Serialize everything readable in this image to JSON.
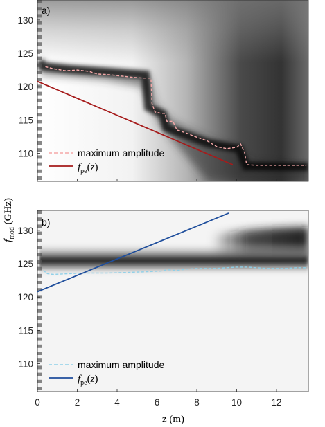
{
  "chart_data": [
    {
      "type": "heatmap",
      "panel_label": "a)",
      "xlim": [
        0,
        13.6
      ],
      "ylim": [
        105.8,
        133
      ],
      "xticks": [],
      "yticks": [
        110,
        115,
        120,
        125,
        130
      ],
      "grid": false,
      "legend_placement": "bottom-left",
      "series": [
        {
          "name": "maximum amplitude",
          "style": "dashed",
          "color": "#f5a8a8",
          "x": [
            0.4,
            0.8,
            1.4,
            2.0,
            2.6,
            3.0,
            3.6,
            4.2,
            4.8,
            5.3,
            5.7,
            5.75,
            5.9,
            6.2,
            6.4,
            6.5,
            6.8,
            7.0,
            7.5,
            8.0,
            8.5,
            9.0,
            9.5,
            10.0,
            10.2,
            10.4,
            10.5,
            11.0,
            11.5,
            12.0,
            12.5,
            13.0,
            13.5
          ],
          "y": [
            123.0,
            122.7,
            122.4,
            122.5,
            122.3,
            121.9,
            121.8,
            121.6,
            121.4,
            121.3,
            121.3,
            117.5,
            116.2,
            116.0,
            116.0,
            114.8,
            114.8,
            113.5,
            113.0,
            112.4,
            111.9,
            111.0,
            110.7,
            110.9,
            111.4,
            110.1,
            108.3,
            108.2,
            108.2,
            108.2,
            108.2,
            108.2,
            108.2
          ]
        },
        {
          "name": "f_pe(z)",
          "style": "solid",
          "color": "#a61b1b",
          "x": [
            0,
            9.8
          ],
          "y": [
            120.8,
            108.3
          ]
        }
      ]
    },
    {
      "type": "heatmap",
      "panel_label": "b)",
      "xlim": [
        0,
        13.6
      ],
      "ylim": [
        105.8,
        133
      ],
      "xticks": [
        0,
        2,
        4,
        6,
        8,
        10,
        12
      ],
      "yticks": [
        110,
        115,
        120,
        125,
        130
      ],
      "grid": false,
      "legend_placement": "bottom-left",
      "series": [
        {
          "name": "maximum amplitude",
          "style": "dashed",
          "color": "#8fd0e8",
          "x": [
            0.3,
            0.5,
            0.8,
            1.5,
            2.5,
            3.5,
            4.5,
            5.5,
            6.2,
            6.5,
            7.0,
            7.5,
            8.0,
            8.5,
            9.0,
            9.5,
            10.0,
            10.5,
            11.0,
            11.5,
            12.0,
            12.5,
            13.0,
            13.5
          ],
          "y": [
            124.0,
            123.5,
            123.4,
            123.5,
            123.6,
            123.6,
            123.7,
            123.8,
            123.9,
            124.1,
            124.0,
            124.2,
            124.3,
            124.3,
            124.3,
            124.4,
            124.5,
            124.5,
            124.4,
            124.3,
            124.3,
            124.3,
            124.4,
            124.4
          ]
        },
        {
          "name": "f_pe(z)",
          "style": "solid",
          "color": "#1f4e9c",
          "x": [
            0,
            9.6
          ],
          "y": [
            120.8,
            132.6
          ]
        }
      ]
    }
  ],
  "xlabel": "z (m)",
  "ylabel": "f_mod (GHz)",
  "legend": {
    "amplitude_label": "maximum amplitude",
    "fpe_label": "f_pe(z)"
  }
}
